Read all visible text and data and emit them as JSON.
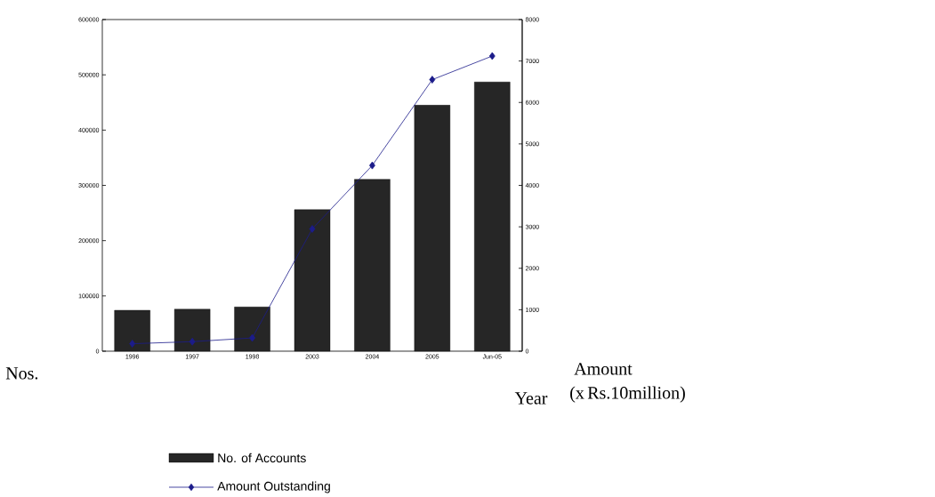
{
  "chart_data": {
    "type": "bar",
    "xlabel": "Year",
    "ylabel": "Nos.",
    "y2label": "Amount (x Rs.10million)",
    "categories": [
      "1996",
      "1997",
      "1998",
      "2003",
      "2004",
      "2005",
      "Jun-05"
    ],
    "series": [
      {
        "name": "No. of Accounts",
        "color": "#262626",
        "values": [
          74000,
          76000,
          80000,
          256000,
          311000,
          445000,
          487000
        ]
      },
      {
        "name": "Amount Outstanding",
        "type": "line",
        "axis": "y2",
        "marker": "diamond",
        "color": "#1c1c8a",
        "values": [
          180,
          230,
          320,
          2950,
          4480,
          6550,
          7120
        ]
      }
    ],
    "ylim": [
      0,
      600000
    ],
    "yticks": [
      0,
      100000,
      200000,
      300000,
      400000,
      500000,
      600000
    ],
    "y2lim": [
      0,
      8000
    ],
    "y2ticks": [
      0,
      1000,
      2000,
      3000,
      4000,
      5000,
      6000,
      7000,
      8000
    ],
    "grid": false,
    "legend": "bottom"
  }
}
